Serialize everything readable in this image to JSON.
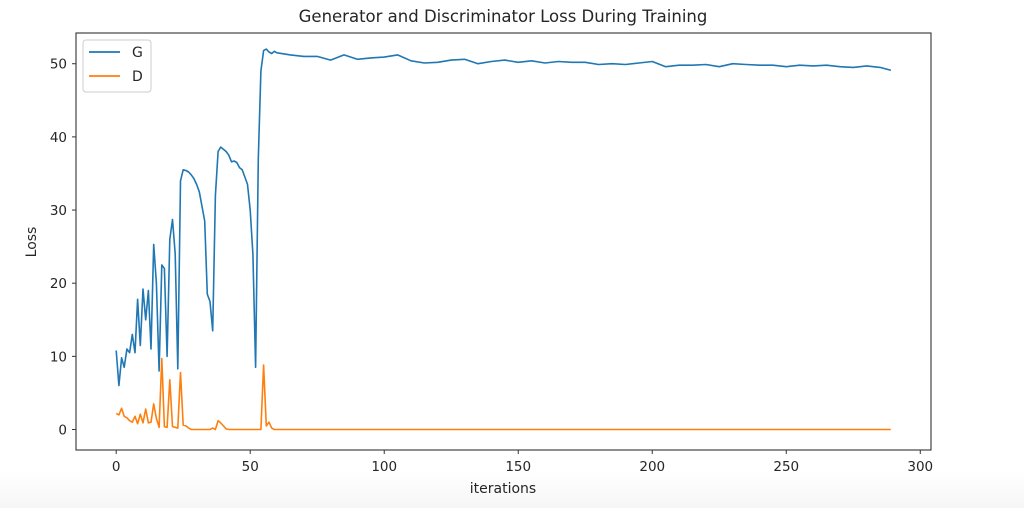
{
  "chart_data": {
    "type": "line",
    "title": "Generator and Discriminator Loss During Training",
    "xlabel": "iterations",
    "ylabel": "Loss",
    "xlim": [
      -15,
      304
    ],
    "ylim": [
      -2.8,
      54.2
    ],
    "xticks": [
      0,
      50,
      100,
      150,
      200,
      250,
      300
    ],
    "yticks": [
      0,
      10,
      20,
      30,
      40,
      50
    ],
    "grid": false,
    "legend_position": "upper left",
    "series": [
      {
        "name": "G",
        "color": "#1f77b4",
        "x": [
          0,
          1,
          2,
          3,
          4,
          5,
          6,
          7,
          8,
          9,
          10,
          11,
          12,
          13,
          14,
          15,
          16,
          17,
          18,
          19,
          20,
          21,
          22,
          23,
          24,
          25,
          26,
          27,
          28,
          29,
          30,
          31,
          32,
          33,
          34,
          35,
          36,
          37,
          38,
          39,
          40,
          41,
          42,
          43,
          44,
          45,
          46,
          47,
          48,
          49,
          50,
          51,
          52,
          53,
          54,
          55,
          56,
          57,
          58,
          59,
          60,
          65,
          70,
          75,
          80,
          85,
          90,
          95,
          100,
          105,
          110,
          115,
          120,
          125,
          130,
          135,
          140,
          145,
          150,
          155,
          160,
          165,
          170,
          175,
          180,
          185,
          190,
          195,
          200,
          205,
          210,
          215,
          220,
          225,
          230,
          235,
          240,
          245,
          250,
          255,
          260,
          265,
          270,
          275,
          280,
          285,
          289
        ],
        "values": [
          10.8,
          6.0,
          9.8,
          8.5,
          11.0,
          10.5,
          13.0,
          10.5,
          17.8,
          11.5,
          19.2,
          15.0,
          19.0,
          11.0,
          25.3,
          20.0,
          8.0,
          22.5,
          22.0,
          10.0,
          26.0,
          28.7,
          24.0,
          8.3,
          34.0,
          35.5,
          35.4,
          35.2,
          34.8,
          34.3,
          33.5,
          32.5,
          30.5,
          28.5,
          18.5,
          17.5,
          13.5,
          32.0,
          38.0,
          38.6,
          38.3,
          38.0,
          37.5,
          36.6,
          36.7,
          36.5,
          35.8,
          35.5,
          34.5,
          33.5,
          30.0,
          24.0,
          8.5,
          37.0,
          49.0,
          51.8,
          52.0,
          51.6,
          51.4,
          51.7,
          51.5,
          51.2,
          51.0,
          51.0,
          50.5,
          51.2,
          50.6,
          50.8,
          50.9,
          51.2,
          50.4,
          50.1,
          50.2,
          50.5,
          50.6,
          50.0,
          50.3,
          50.5,
          50.2,
          50.4,
          50.1,
          50.3,
          50.2,
          50.2,
          49.9,
          50.0,
          49.9,
          50.1,
          50.3,
          49.6,
          49.8,
          49.8,
          49.9,
          49.6,
          50.0,
          49.9,
          49.8,
          49.8,
          49.6,
          49.8,
          49.7,
          49.8,
          49.6,
          49.5,
          49.7,
          49.5,
          49.1
        ]
      },
      {
        "name": "D",
        "color": "#ff7f0e",
        "x": [
          0,
          1,
          2,
          3,
          4,
          5,
          6,
          7,
          8,
          9,
          10,
          11,
          12,
          13,
          14,
          15,
          16,
          17,
          18,
          19,
          20,
          21,
          22,
          23,
          24,
          25,
          26,
          27,
          28,
          29,
          30,
          31,
          32,
          33,
          34,
          35,
          36,
          37,
          38,
          39,
          40,
          41,
          42,
          43,
          44,
          45,
          50,
          52,
          53,
          54,
          55,
          56,
          57,
          58,
          59,
          60,
          70,
          100,
          150,
          200,
          250,
          289
        ],
        "values": [
          2.2,
          2.0,
          2.9,
          1.8,
          1.6,
          1.2,
          1.0,
          1.8,
          0.8,
          2.1,
          0.9,
          2.8,
          0.9,
          1.0,
          3.5,
          1.5,
          0.3,
          9.7,
          0.4,
          0.3,
          6.8,
          0.4,
          0.3,
          0.2,
          7.8,
          0.6,
          0.5,
          0.2,
          0.0,
          0.0,
          0.0,
          0.0,
          0.0,
          0.0,
          0.0,
          0.0,
          0.2,
          0.0,
          1.2,
          0.9,
          0.5,
          0.1,
          0.0,
          0.0,
          0.0,
          0.0,
          0.0,
          0.0,
          0.0,
          0.0,
          8.8,
          0.5,
          1.0,
          0.2,
          0.0,
          0.0,
          0.0,
          0.0,
          0.0,
          0.0,
          0.0,
          0.0
        ]
      }
    ]
  },
  "legend": {
    "items": [
      {
        "label": "G",
        "color": "#1f77b4"
      },
      {
        "label": "D",
        "color": "#ff7f0e"
      }
    ]
  }
}
